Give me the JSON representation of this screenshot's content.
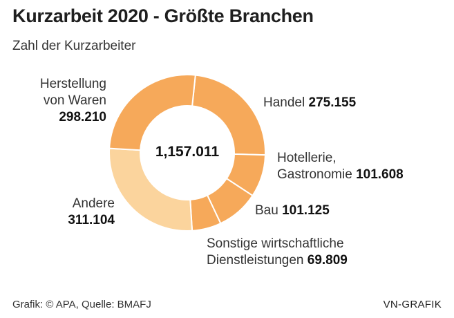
{
  "chart_data": {
    "type": "pie",
    "title": "Kurzarbeit 2020 - Größte Branchen",
    "subtitle": "Zahl der Kurzarbeiter",
    "total_label": "1,157.011",
    "slices": [
      {
        "name": "Handel",
        "value": 275155,
        "value_label": "275.155",
        "color": "#f6a95a"
      },
      {
        "name": "Hotellerie, Gastronomie",
        "name_line1": "Hotellerie,",
        "name_line2": "Gastronomie",
        "value": 101608,
        "value_label": "101.608",
        "color": "#f6a95a"
      },
      {
        "name": "Bau",
        "value": 101125,
        "value_label": "101.125",
        "color": "#f6a95a"
      },
      {
        "name": "Sonstige wirtschaftliche Dienstleistungen",
        "name_line1": "Sonstige wirtschaftliche",
        "name_line2": "Dienstleistungen",
        "value": 69809,
        "value_label": "69.809",
        "color": "#f6a95a"
      },
      {
        "name": "Andere",
        "value": 311104,
        "value_label": "311.104",
        "color": "#fbd49d"
      },
      {
        "name": "Herstellung von Waren",
        "name_line1": "Herstellung",
        "name_line2": "von Waren",
        "value": 298210,
        "value_label": "298.210",
        "color": "#f6a95a"
      }
    ],
    "separator_color": "#ffffff"
  },
  "footer": {
    "source": "Grafik: © APA, Quelle: BMAFJ",
    "brand": "VN-GRAFIK"
  }
}
